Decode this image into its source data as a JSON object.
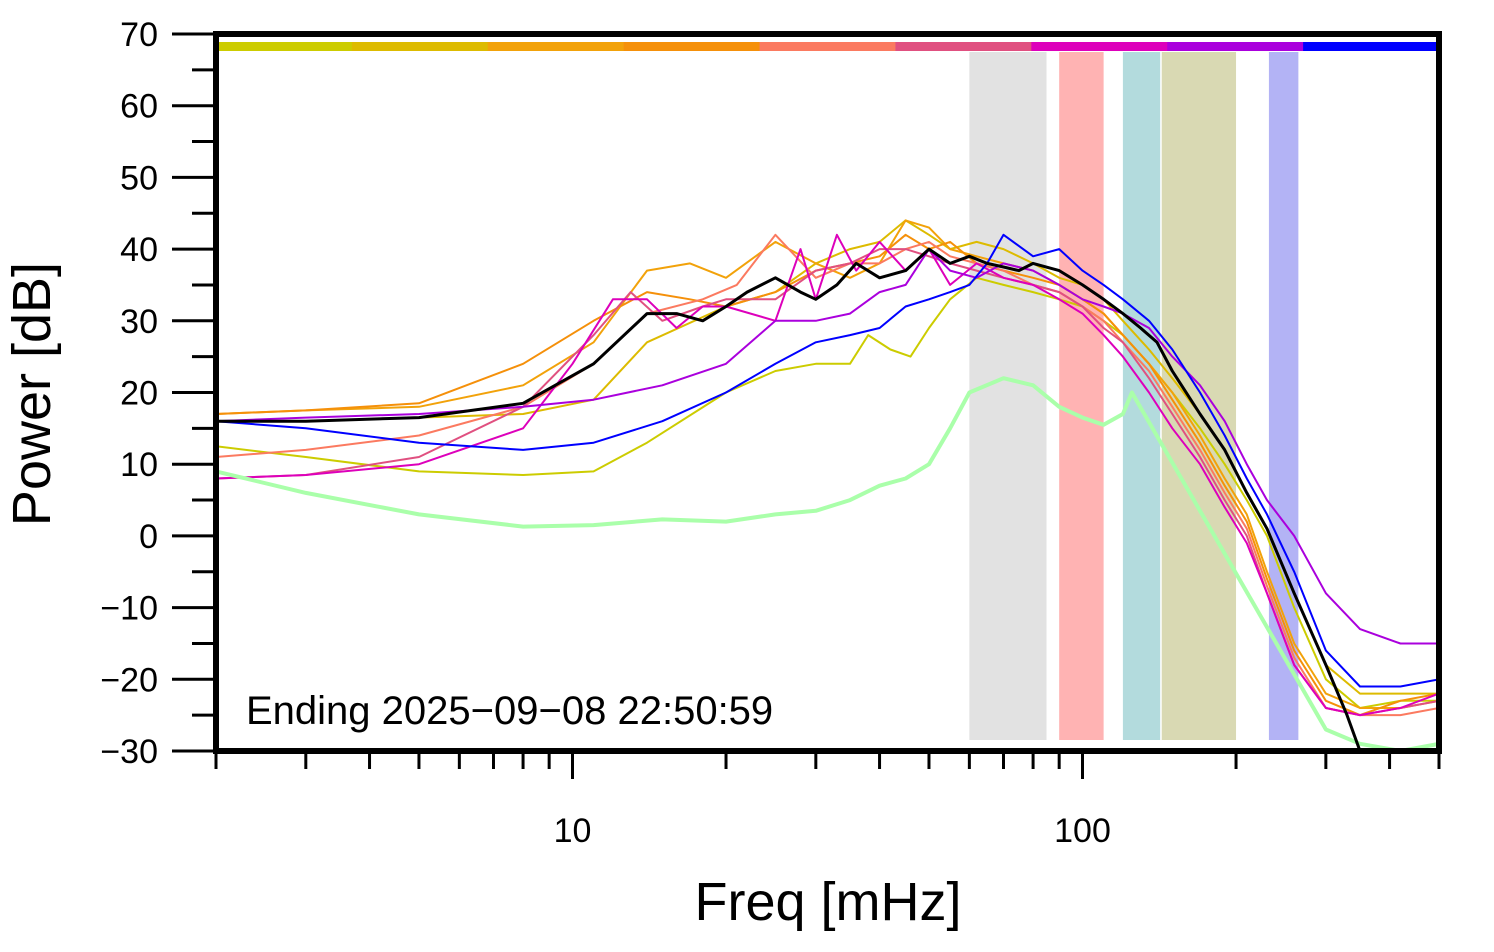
{
  "chart_data": {
    "type": "line",
    "xlabel": "Freq [mHz]",
    "ylabel": "Power [dB]",
    "x_scale": "log",
    "xlim": [
      2,
      500
    ],
    "ylim": [
      -30,
      70
    ],
    "x_tick_labels": [
      {
        "value": 10,
        "label": "10"
      },
      {
        "value": 100,
        "label": "100"
      }
    ],
    "y_ticks": [
      {
        "value": 70,
        "label": "70"
      },
      {
        "value": 60,
        "label": "60"
      },
      {
        "value": 50,
        "label": "50"
      },
      {
        "value": 40,
        "label": "40"
      },
      {
        "value": 30,
        "label": "30"
      },
      {
        "value": 20,
        "label": "20"
      },
      {
        "value": 10,
        "label": "10"
      },
      {
        "value": 0,
        "label": "0"
      },
      {
        "value": -10,
        "label": "−10"
      },
      {
        "value": -20,
        "label": "−20"
      },
      {
        "value": -30,
        "label": "−30"
      }
    ],
    "annotation": "Ending 2025−09−08 22:50:59",
    "grid": false,
    "bands": [
      {
        "from": 60,
        "to": 85,
        "color": "#e2e2e2"
      },
      {
        "from": 90,
        "to": 110,
        "color": "#ffb3b3"
      },
      {
        "from": 120,
        "to": 142,
        "color": "#b3dbdd"
      },
      {
        "from": 143,
        "to": 200,
        "color": "#d9d9b3"
      },
      {
        "from": 232,
        "to": 265,
        "color": "#b3b3f5"
      }
    ],
    "top_color_bar": [
      "#cccc00",
      "#ddbb00",
      "#f2a20a",
      "#f5900a",
      "#fb7a60",
      "#e05080",
      "#dd00bb",
      "#aa00dd",
      "#0000ff"
    ],
    "series": [
      {
        "color": "#cccc00",
        "width": 2,
        "x": [
          2,
          3,
          5,
          8,
          11,
          14,
          20,
          25,
          30,
          35,
          38,
          42,
          46,
          50,
          55,
          62,
          70,
          80,
          90,
          100,
          110,
          120,
          135,
          150,
          170,
          190,
          210,
          230,
          260,
          300,
          350,
          420,
          500
        ],
        "y": [
          12.5,
          11,
          9,
          8.5,
          9,
          13,
          20,
          23,
          24,
          24,
          28,
          26,
          25,
          29,
          33,
          36,
          35,
          34,
          33,
          32,
          30,
          28,
          24,
          20,
          15,
          10,
          5,
          0,
          -10,
          -20,
          -24,
          -23,
          -23
        ]
      },
      {
        "color": "#ddbb00",
        "width": 2,
        "x": [
          2,
          3,
          5,
          8,
          11,
          14,
          20,
          25,
          30,
          35,
          40,
          45,
          50,
          55,
          62,
          70,
          80,
          90,
          100,
          110,
          120,
          135,
          150,
          170,
          190,
          210,
          230,
          260,
          300,
          350,
          420,
          500
        ],
        "y": [
          16,
          16,
          16.5,
          17,
          19,
          27,
          32,
          34,
          38,
          40,
          41,
          44,
          42,
          40,
          41,
          40,
          38,
          36,
          35,
          33,
          30,
          26,
          22,
          17,
          12,
          6,
          1,
          -8,
          -18,
          -22,
          -22,
          -22
        ]
      },
      {
        "color": "#f2a20a",
        "width": 2,
        "x": [
          2,
          3,
          5,
          8,
          11,
          14,
          17,
          20,
          25,
          30,
          35,
          40,
          45,
          50,
          55,
          62,
          70,
          80,
          90,
          100,
          110,
          120,
          135,
          150,
          170,
          190,
          210,
          230,
          260,
          300,
          350,
          420,
          500
        ],
        "y": [
          17,
          17.5,
          18,
          21,
          27,
          37,
          38,
          36,
          41,
          38,
          36,
          38,
          44,
          43,
          40,
          39,
          38,
          37,
          35,
          33,
          31,
          28,
          24,
          20,
          14,
          8,
          3,
          -5,
          -15,
          -22,
          -24,
          -24,
          -23
        ]
      },
      {
        "color": "#f5900a",
        "width": 2,
        "x": [
          2,
          3,
          5,
          8,
          11,
          14,
          17,
          20,
          25,
          30,
          35,
          40,
          45,
          50,
          55,
          62,
          70,
          80,
          90,
          100,
          110,
          120,
          135,
          150,
          170,
          190,
          210,
          230,
          260,
          300,
          350,
          420,
          500
        ],
        "y": [
          17,
          17.5,
          18.5,
          24,
          30,
          34,
          33,
          32,
          34,
          37,
          38,
          39,
          42,
          40,
          41,
          38,
          37,
          36,
          35,
          33,
          31,
          28,
          24,
          19,
          13,
          7,
          2,
          -6,
          -16,
          -23,
          -25,
          -23,
          -22
        ]
      },
      {
        "color": "#fb7a60",
        "width": 2,
        "x": [
          2,
          3,
          5,
          8,
          11,
          14,
          18,
          21,
          25,
          30,
          35,
          40,
          45,
          50,
          55,
          62,
          70,
          80,
          90,
          100,
          110,
          120,
          135,
          150,
          170,
          190,
          210,
          230,
          260,
          300,
          350,
          420,
          500
        ],
        "y": [
          11,
          12,
          14,
          18,
          24,
          31,
          33,
          35,
          42,
          36,
          38,
          38,
          40,
          41,
          39,
          38,
          37,
          35,
          34,
          32,
          30,
          27,
          23,
          18,
          12,
          6,
          1,
          -7,
          -17,
          -24,
          -25,
          -25,
          -24
        ]
      },
      {
        "color": "#e05080",
        "width": 2,
        "x": [
          2,
          3,
          5,
          8,
          11,
          13,
          15,
          18,
          20,
          25,
          30,
          35,
          40,
          45,
          50,
          55,
          62,
          70,
          80,
          90,
          100,
          110,
          120,
          135,
          150,
          170,
          190,
          210,
          230,
          260,
          300,
          350,
          420,
          500
        ],
        "y": [
          8,
          8.5,
          11,
          18,
          28,
          34,
          30,
          32,
          33,
          33,
          37,
          38,
          40,
          40,
          39,
          38,
          37,
          36,
          35,
          34,
          32,
          29,
          27,
          22,
          17,
          11,
          5,
          0,
          -8,
          -18,
          -24,
          -25,
          -24,
          -23
        ]
      },
      {
        "color": "#dd00bb",
        "width": 2,
        "x": [
          2,
          3,
          5,
          8,
          10,
          12,
          14,
          16,
          18,
          20,
          25,
          28,
          30,
          33,
          36,
          40,
          45,
          50,
          55,
          62,
          70,
          80,
          90,
          100,
          110,
          120,
          135,
          150,
          170,
          190,
          210,
          230,
          260,
          300,
          350,
          420,
          500
        ],
        "y": [
          8,
          8.5,
          10,
          15,
          24,
          33,
          33,
          29,
          32,
          32,
          30,
          40,
          33,
          42,
          37,
          41,
          37,
          40,
          35,
          38,
          36,
          35,
          33,
          31,
          28,
          25,
          20,
          15,
          10,
          4,
          -1,
          -8,
          -18,
          -24,
          -25,
          -24,
          -22
        ]
      },
      {
        "color": "#aa00dd",
        "width": 2,
        "x": [
          2,
          3,
          5,
          8,
          11,
          15,
          20,
          25,
          30,
          35,
          40,
          45,
          50,
          55,
          62,
          70,
          80,
          90,
          100,
          110,
          120,
          135,
          150,
          170,
          190,
          210,
          230,
          260,
          300,
          350,
          420,
          500
        ],
        "y": [
          16,
          16.5,
          17,
          18,
          19,
          21,
          24,
          30,
          30,
          31,
          34,
          35,
          40,
          37,
          36,
          38,
          37,
          35,
          33,
          32,
          31,
          29,
          25,
          21,
          16,
          10,
          5,
          0,
          -8,
          -13,
          -15,
          -15
        ]
      },
      {
        "color": "#0000ff",
        "width": 2,
        "x": [
          2,
          3,
          5,
          8,
          11,
          15,
          20,
          25,
          30,
          35,
          40,
          45,
          50,
          55,
          60,
          65,
          70,
          80,
          90,
          100,
          110,
          120,
          135,
          150,
          170,
          190,
          210,
          230,
          260,
          300,
          350,
          420,
          500
        ],
        "y": [
          16,
          15,
          13,
          12,
          13,
          16,
          20,
          24,
          27,
          28,
          29,
          32,
          33,
          34,
          35,
          38,
          42,
          39,
          40,
          37,
          35,
          33,
          30,
          26,
          20,
          14,
          8,
          3,
          -5,
          -16,
          -21,
          -21,
          -20
        ]
      },
      {
        "color": "#aaffaa",
        "width": 4,
        "x": [
          2,
          3,
          5,
          8,
          11,
          15,
          20,
          25,
          30,
          35,
          40,
          45,
          50,
          55,
          60,
          70,
          80,
          90,
          100,
          110,
          120,
          125,
          300,
          350,
          420,
          500
        ],
        "y": [
          9,
          6,
          3,
          1.3,
          1.5,
          2.3,
          2,
          3,
          3.5,
          5,
          7,
          8,
          10,
          15,
          20,
          22,
          21,
          18,
          16.5,
          15.5,
          17,
          20,
          -27,
          -29,
          -30,
          -29
        ]
      },
      {
        "color": "#000000",
        "width": 3,
        "x": [
          2,
          3,
          5,
          8,
          11,
          14,
          16,
          18,
          20,
          22,
          25,
          28,
          30,
          33,
          36,
          40,
          45,
          50,
          55,
          60,
          65,
          70,
          75,
          80,
          90,
          100,
          110,
          120,
          130,
          140,
          150,
          170,
          190,
          210,
          230,
          260,
          300,
          330,
          350
        ],
        "y": [
          16,
          16,
          16.5,
          18.5,
          24,
          31,
          31,
          30,
          32,
          34,
          36,
          34,
          33,
          35,
          38,
          36,
          37,
          40,
          38,
          39,
          38,
          37.5,
          37,
          38,
          37,
          35,
          33,
          31,
          29,
          27,
          23,
          17,
          12,
          6,
          1,
          -8,
          -18,
          -25,
          -30
        ]
      }
    ]
  }
}
